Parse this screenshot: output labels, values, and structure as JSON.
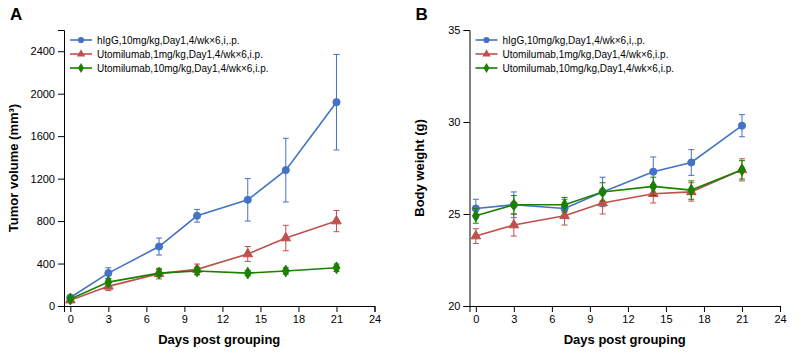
{
  "chart_data": [
    {
      "type": "line",
      "title": "A",
      "xlabel": "Days post grouping",
      "ylabel": "Tumor volume (mm³)",
      "x": [
        0,
        3,
        7,
        10,
        14,
        17,
        21
      ],
      "xlim": [
        -0.5,
        24
      ],
      "ylim": [
        0,
        2600
      ],
      "xticks": [
        0,
        3,
        6,
        9,
        12,
        15,
        18,
        21,
        24
      ],
      "yticks": [
        0,
        400,
        800,
        1200,
        1600,
        2000,
        2400
      ],
      "grid": false,
      "legend": "upper left",
      "series": [
        {
          "name": "hIgG,10mg/kg,Day1,4/wk×6,i,.p.",
          "color": "#4472C4",
          "marker": "circle",
          "values": [
            80,
            310,
            560,
            850,
            1000,
            1280,
            1920
          ],
          "yerr": [
            20,
            50,
            80,
            60,
            200,
            300,
            450
          ]
        },
        {
          "name": "Utomilumab,1mg/kg,Day1,4/wk×6,i.p.",
          "color": "#C0504D",
          "marker": "triangle",
          "values": [
            55,
            185,
            305,
            345,
            490,
            640,
            800
          ],
          "yerr": [
            12,
            40,
            50,
            50,
            70,
            120,
            100
          ]
        },
        {
          "name": "Utomilumab,10mg/kg,Day1,4/wk×6,i.p.",
          "color": "#1A8000",
          "marker": "diamond",
          "values": [
            65,
            225,
            310,
            330,
            310,
            330,
            360
          ],
          "yerr": [
            12,
            30,
            35,
            35,
            25,
            30,
            35
          ]
        }
      ]
    },
    {
      "type": "line",
      "title": "B",
      "xlabel": "Days post grouping",
      "ylabel": "Body weight (g)",
      "x": [
        0,
        3,
        7,
        10,
        14,
        17,
        21
      ],
      "xlim": [
        -0.5,
        24
      ],
      "ylim": [
        20,
        35
      ],
      "xticks": [
        0,
        3,
        6,
        9,
        12,
        15,
        18,
        21,
        24
      ],
      "yticks": [
        20,
        25,
        30,
        35
      ],
      "grid": false,
      "legend": "upper left",
      "series": [
        {
          "name": "hIgG,10mg/kg,Day1,4/wk×6,i,.p.",
          "color": "#4472C4",
          "marker": "circle",
          "values": [
            25.3,
            25.5,
            25.3,
            26.2,
            27.3,
            27.8,
            29.8
          ],
          "yerr": [
            0.5,
            0.7,
            0.5,
            0.8,
            0.8,
            0.7,
            0.6
          ]
        },
        {
          "name": "Utomilumab,1mg/kg,Day1,4/wk×6,i.p.",
          "color": "#C0504D",
          "marker": "triangle",
          "values": [
            23.8,
            24.4,
            24.9,
            25.6,
            26.1,
            26.2,
            27.4
          ],
          "yerr": [
            0.4,
            0.6,
            0.5,
            0.6,
            0.5,
            0.5,
            0.6
          ]
        },
        {
          "name": "Utomilumab,10mg/kg,Day1,4/wk×6,i.p.",
          "color": "#1A8000",
          "marker": "diamond",
          "values": [
            24.9,
            25.5,
            25.5,
            26.2,
            26.5,
            26.3,
            27.4
          ],
          "yerr": [
            0.4,
            0.5,
            0.4,
            0.5,
            0.5,
            0.5,
            0.5
          ]
        }
      ]
    }
  ]
}
